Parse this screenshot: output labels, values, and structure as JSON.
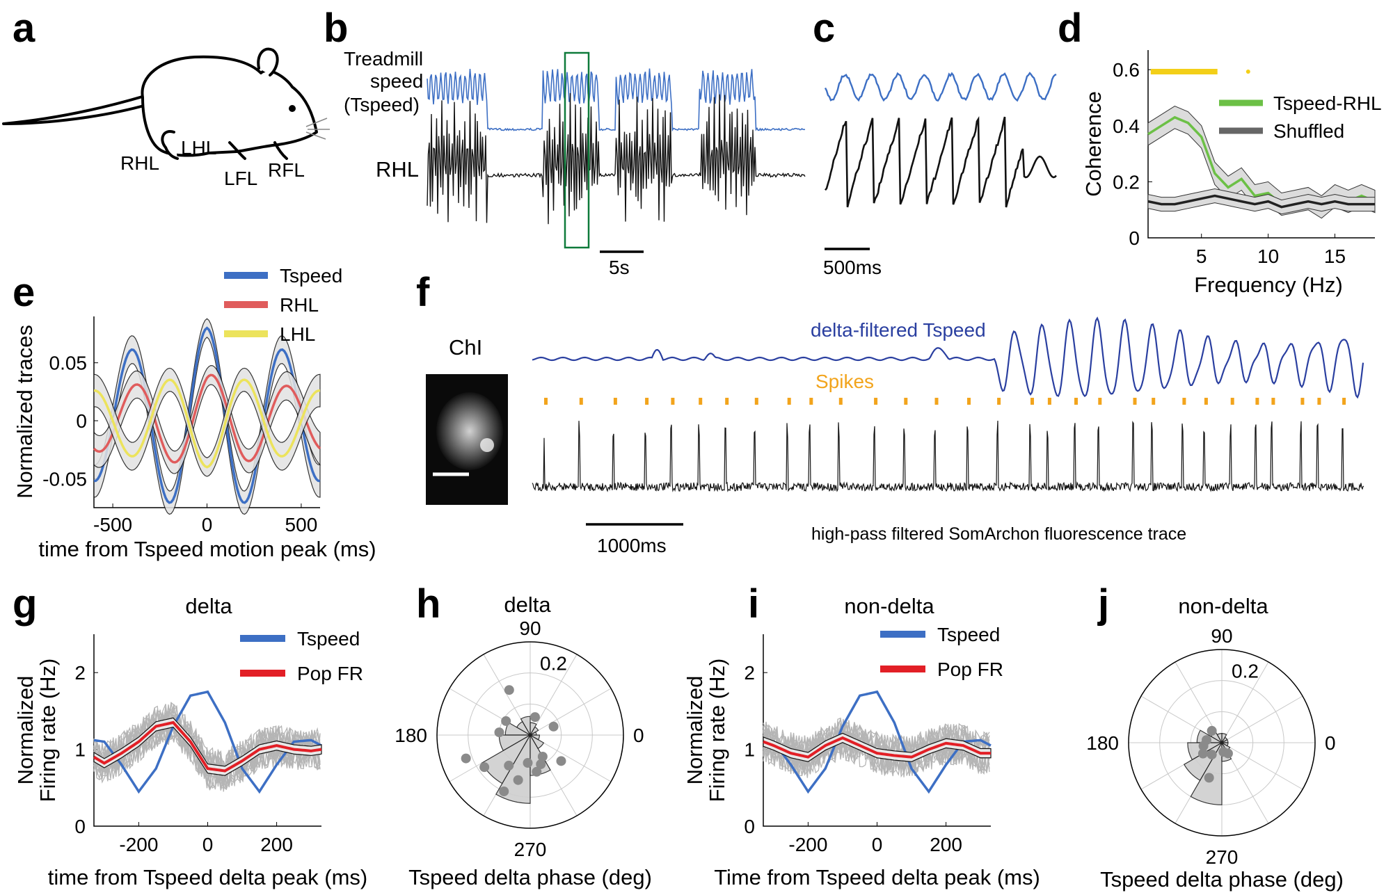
{
  "panel_labels": [
    "a",
    "b",
    "c",
    "d",
    "e",
    "f",
    "g",
    "h",
    "i",
    "j"
  ],
  "panel_a": {
    "limb_labels": [
      "RHL",
      "LHL",
      "LFL",
      "RFL"
    ]
  },
  "panel_b": {
    "trace_label_lines": [
      "Treadmill",
      "speed",
      "(Tspeed)"
    ],
    "trace_label_2": "RHL",
    "scalebar": "5s"
  },
  "panel_c": {
    "scalebar": "500ms"
  },
  "panel_f": {
    "image_label": "ChI",
    "tspeed_label": "delta-filtered Tspeed",
    "spikes_label": "Spikes",
    "fluor_label": "high-pass filtered SomArchon fluorescence trace",
    "scalebar": "1000ms"
  },
  "colors": {
    "tspeed": "#3d6fc4",
    "rhl": "#e05c5c",
    "lhl": "#ece35c",
    "green": "#6cc046",
    "spikes": "#f2a41c",
    "yellow": "#f3cf18",
    "trace": "#111111",
    "gray": "#a0a0a0",
    "popfr": "#e21f26"
  },
  "chart_data": [
    {
      "id": "d",
      "type": "line",
      "xlabel": "Frequency (Hz)",
      "ylabel": "Coherence",
      "xlim": [
        1,
        18
      ],
      "ylim": [
        0,
        0.67
      ],
      "xticks": [
        "5",
        "10",
        "15"
      ],
      "yticks": [
        "0",
        "0.2",
        "0.4",
        "0.6"
      ],
      "legend": [
        "Tspeed-RHL",
        "Shuffled"
      ],
      "series": [
        {
          "name": "Tspeed-RHL",
          "x": [
            1,
            2,
            3,
            4,
            5,
            6,
            7,
            8,
            9,
            10,
            11,
            12,
            13,
            14,
            15,
            16,
            17,
            18
          ],
          "values": [
            0.37,
            0.4,
            0.43,
            0.41,
            0.36,
            0.23,
            0.18,
            0.21,
            0.15,
            0.16,
            0.12,
            0.13,
            0.14,
            0.11,
            0.15,
            0.13,
            0.15,
            0.13
          ]
        },
        {
          "name": "Shuffled",
          "x": [
            1,
            2,
            3,
            4,
            5,
            6,
            7,
            8,
            9,
            10,
            11,
            12,
            13,
            14,
            15,
            16,
            17,
            18
          ],
          "values": [
            0.13,
            0.12,
            0.12,
            0.13,
            0.14,
            0.15,
            0.14,
            0.13,
            0.12,
            0.13,
            0.11,
            0.12,
            0.13,
            0.12,
            0.13,
            0.12,
            0.12,
            0.12
          ]
        }
      ]
    },
    {
      "id": "e",
      "type": "line",
      "xlabel": "time from Tspeed motion peak (ms)",
      "ylabel": "Normalized traces",
      "xlim": [
        -600,
        600
      ],
      "ylim": [
        -0.075,
        0.09
      ],
      "xticks": [
        "-500",
        "0",
        "500"
      ],
      "yticks": [
        "0.05",
        "0",
        "-0.05"
      ],
      "legend": [
        "Tspeed",
        "RHL",
        "LHL"
      ],
      "series": [
        {
          "name": "Tspeed",
          "amplitude": 0.08,
          "period_ms": 400,
          "phase_ms": 0
        },
        {
          "name": "RHL",
          "amplitude": 0.04,
          "period_ms": 400,
          "phase_ms": 25
        },
        {
          "name": "LHL",
          "amplitude": 0.04,
          "period_ms": 400,
          "phase_ms": 200
        }
      ]
    },
    {
      "id": "g",
      "type": "line",
      "title": "delta",
      "xlabel": "time from Tspeed delta peak (ms)",
      "ylabel_lines": [
        "Normalized",
        "Firing rate (Hz)"
      ],
      "xlim": [
        -330,
        330
      ],
      "ylim": [
        0,
        2.5
      ],
      "xticks": [
        "-200",
        "0",
        "200"
      ],
      "yticks": [
        "0",
        "1",
        "2"
      ],
      "legend": [
        "Tspeed",
        "Pop FR"
      ],
      "series": [
        {
          "name": "Tspeed",
          "x": [
            -330,
            -300,
            -250,
            -200,
            -150,
            -100,
            -50,
            0,
            50,
            100,
            150,
            200,
            250,
            300,
            330
          ],
          "values": [
            1.12,
            1.1,
            0.8,
            0.45,
            0.75,
            1.3,
            1.7,
            1.75,
            1.35,
            0.75,
            0.45,
            0.8,
            1.1,
            1.12,
            1.05
          ]
        },
        {
          "name": "Pop FR",
          "x": [
            -330,
            -300,
            -250,
            -200,
            -150,
            -100,
            -50,
            0,
            50,
            100,
            150,
            200,
            250,
            300,
            330
          ],
          "values": [
            0.9,
            0.82,
            0.95,
            1.1,
            1.3,
            1.35,
            1.1,
            0.75,
            0.72,
            0.85,
            1.0,
            1.05,
            1.0,
            0.98,
            1.0
          ]
        }
      ]
    },
    {
      "id": "h",
      "type": "polar",
      "title": "delta",
      "xlabel": "Tspeed delta phase (deg)",
      "angle_labels": [
        "90",
        "180",
        "0",
        "270"
      ],
      "radial_label": "0.2",
      "rmax": 0.3,
      "bins_deg": [
        0,
        30,
        60,
        90,
        120,
        150,
        180,
        210,
        240,
        270,
        300,
        330
      ],
      "bin_values": [
        0.02,
        0.03,
        0.04,
        0.06,
        0.05,
        0.08,
        0.1,
        0.18,
        0.22,
        0.13,
        0.05,
        0.03
      ],
      "points": [
        [
          20,
          0.08
        ],
        [
          75,
          0.06
        ],
        [
          115,
          0.16
        ],
        [
          150,
          0.09
        ],
        [
          175,
          0.1
        ],
        [
          200,
          0.22
        ],
        [
          215,
          0.18
        ],
        [
          235,
          0.12
        ],
        [
          245,
          0.2
        ],
        [
          255,
          0.15
        ],
        [
          265,
          0.09
        ],
        [
          280,
          0.12
        ],
        [
          290,
          0.1
        ],
        [
          300,
          0.08
        ],
        [
          320,
          0.13
        ]
      ]
    },
    {
      "id": "i",
      "type": "line",
      "title": "non-delta",
      "xlabel": "Time from Tspeed delta peak (ms)",
      "ylabel_lines": [
        "Normalized",
        "Firing rate (Hz)"
      ],
      "xlim": [
        -330,
        330
      ],
      "ylim": [
        0,
        2.5
      ],
      "xticks": [
        "-200",
        "0",
        "200"
      ],
      "yticks": [
        "0",
        "1",
        "2"
      ],
      "legend": [
        "Tspeed",
        "Pop FR"
      ],
      "series": [
        {
          "name": "Tspeed",
          "x": [
            -330,
            -300,
            -250,
            -200,
            -150,
            -100,
            -50,
            0,
            50,
            100,
            150,
            200,
            250,
            300,
            330
          ],
          "values": [
            1.12,
            1.1,
            0.8,
            0.45,
            0.75,
            1.3,
            1.7,
            1.75,
            1.35,
            0.75,
            0.45,
            0.8,
            1.1,
            1.12,
            1.05
          ]
        },
        {
          "name": "Pop FR",
          "x": [
            -330,
            -300,
            -250,
            -200,
            -150,
            -100,
            -50,
            0,
            50,
            100,
            150,
            200,
            250,
            300,
            330
          ],
          "values": [
            1.1,
            1.05,
            0.95,
            0.9,
            1.05,
            1.15,
            1.05,
            0.95,
            0.92,
            0.9,
            1.0,
            1.08,
            1.05,
            0.95,
            0.95
          ]
        }
      ]
    },
    {
      "id": "j",
      "type": "polar",
      "title": "non-delta",
      "xlabel": "Tspeed delta phase (deg)",
      "angle_labels": [
        "90",
        "180",
        "0",
        "270"
      ],
      "radial_label": "0.2",
      "rmax": 0.3,
      "bins_deg": [
        0,
        30,
        60,
        90,
        120,
        150,
        180,
        210,
        240,
        270,
        300,
        330
      ],
      "bin_values": [
        0.02,
        0.02,
        0.03,
        0.03,
        0.04,
        0.08,
        0.11,
        0.14,
        0.2,
        0.06,
        0.03,
        0.02
      ],
      "points": [
        [
          130,
          0.05
        ],
        [
          170,
          0.05
        ],
        [
          190,
          0.06
        ],
        [
          210,
          0.07
        ],
        [
          230,
          0.05
        ],
        [
          250,
          0.12
        ],
        [
          280,
          0.03
        ],
        [
          300,
          0.04
        ]
      ]
    }
  ]
}
